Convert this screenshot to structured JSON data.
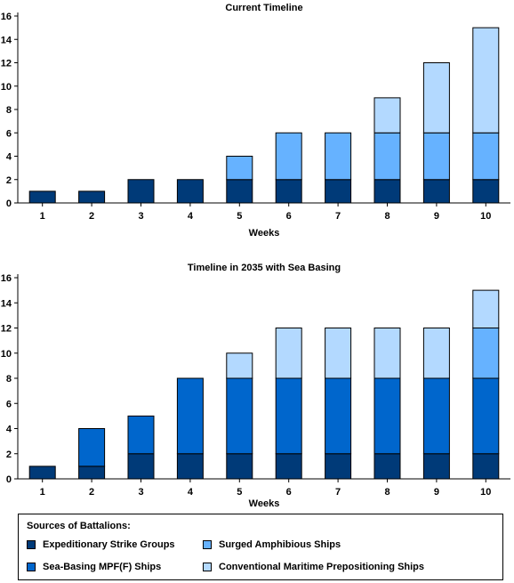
{
  "chart_data": [
    {
      "type": "bar",
      "stacked": true,
      "title": "Current Timeline",
      "xlabel": "Weeks",
      "ylabel": "",
      "ylim": [
        0,
        16
      ],
      "yticks": [
        0,
        2,
        4,
        6,
        8,
        10,
        12,
        14,
        16
      ],
      "categories": [
        "1",
        "2",
        "3",
        "4",
        "5",
        "6",
        "7",
        "8",
        "9",
        "10"
      ],
      "series": [
        {
          "name": "Expeditionary Strike Groups",
          "color": "#003a78",
          "values": [
            1,
            1,
            2,
            2,
            2,
            2,
            2,
            2,
            2,
            2
          ]
        },
        {
          "name": "Sea-Basing MPF(F) Ships",
          "color": "#0066cc",
          "values": [
            0,
            0,
            0,
            0,
            0,
            0,
            0,
            0,
            0,
            0
          ]
        },
        {
          "name": "Surged Amphibious Ships",
          "color": "#66b2ff",
          "values": [
            0,
            0,
            0,
            0,
            2,
            4,
            4,
            4,
            4,
            4
          ]
        },
        {
          "name": "Conventional Maritime Prepositioning Ships",
          "color": "#b3d9ff",
          "values": [
            0,
            0,
            0,
            0,
            0,
            0,
            0,
            3,
            6,
            9
          ]
        }
      ]
    },
    {
      "type": "bar",
      "stacked": true,
      "title": "Timeline in 2035 with Sea Basing",
      "xlabel": "Weeks",
      "ylabel": "",
      "ylim": [
        0,
        16
      ],
      "yticks": [
        0,
        2,
        4,
        6,
        8,
        10,
        12,
        14,
        16
      ],
      "categories": [
        "1",
        "2",
        "3",
        "4",
        "5",
        "6",
        "7",
        "8",
        "9",
        "10"
      ],
      "series": [
        {
          "name": "Expeditionary Strike Groups",
          "color": "#003a78",
          "values": [
            1,
            1,
            2,
            2,
            2,
            2,
            2,
            2,
            2,
            2
          ]
        },
        {
          "name": "Sea-Basing MPF(F) Ships",
          "color": "#0066cc",
          "values": [
            0,
            3,
            3,
            6,
            6,
            6,
            6,
            6,
            6,
            6
          ]
        },
        {
          "name": "Surged Amphibious Ships",
          "color": "#66b2ff",
          "values": [
            0,
            0,
            0,
            0,
            0,
            0,
            0,
            0,
            0,
            4
          ]
        },
        {
          "name": "Conventional Maritime Prepositioning Ships",
          "color": "#b3d9ff",
          "values": [
            0,
            0,
            0,
            0,
            2,
            4,
            4,
            4,
            4,
            3
          ]
        }
      ]
    }
  ],
  "legend": {
    "title": "Sources of Battalions:",
    "items": [
      {
        "label": "Expeditionary Strike Groups",
        "color": "#003a78"
      },
      {
        "label": "Surged Amphibious Ships",
        "color": "#66b2ff"
      },
      {
        "label": "Sea-Basing MPF(F) Ships",
        "color": "#0066cc"
      },
      {
        "label": "Conventional Maritime Prepositioning Ships",
        "color": "#b3d9ff"
      }
    ]
  }
}
